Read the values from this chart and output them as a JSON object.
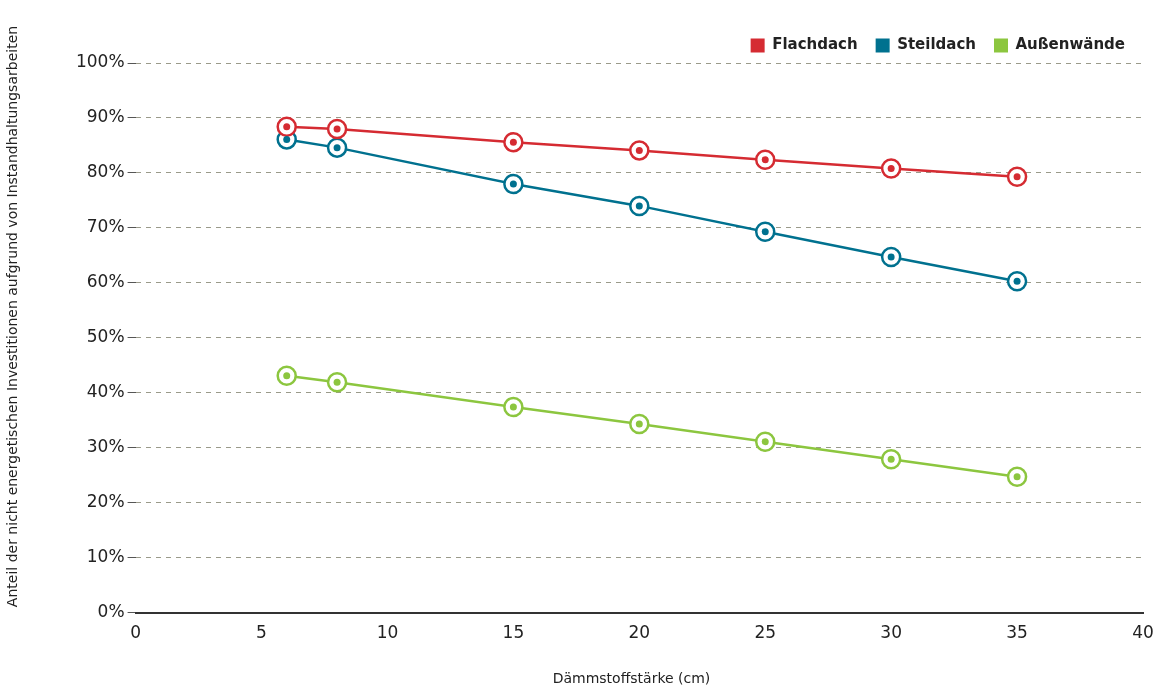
{
  "chart_data": {
    "type": "line",
    "xlabel": "Dämmstoffstärke (cm)",
    "ylabel": "Anteil der nicht energetischen Investitionen aufgrund von Instandhaltungsarbeiten",
    "x": [
      6,
      8,
      15,
      20,
      25,
      30,
      35
    ],
    "series": [
      {
        "name": "Flachdach",
        "color": "#d52b32",
        "values": [
          88.4,
          88.0,
          85.6,
          84.1,
          82.4,
          80.8,
          79.3
        ]
      },
      {
        "name": "Steildach",
        "color": "#00718f",
        "values": [
          86.1,
          84.6,
          78.0,
          74.0,
          69.3,
          64.7,
          60.3
        ]
      },
      {
        "name": "Außenwände",
        "color": "#8cc63f",
        "values": [
          43.1,
          41.9,
          37.4,
          34.3,
          31.1,
          27.9,
          24.7
        ]
      }
    ],
    "xlim": [
      0,
      40
    ],
    "xticks": [
      0,
      5,
      10,
      15,
      20,
      25,
      30,
      35,
      40
    ],
    "ylim": [
      0,
      100
    ],
    "yticks": [
      {
        "value": 0,
        "label": "0%"
      },
      {
        "value": 10,
        "label": "10%"
      },
      {
        "value": 20,
        "label": "20%"
      },
      {
        "value": 30,
        "label": "30%"
      },
      {
        "value": 40,
        "label": "40%"
      },
      {
        "value": 50,
        "label": "50%"
      },
      {
        "value": 60,
        "label": "60%"
      },
      {
        "value": 70,
        "label": "70%"
      },
      {
        "value": 80,
        "label": "80%"
      },
      {
        "value": 90,
        "label": "90%"
      },
      {
        "value": 100,
        "label": "100%"
      }
    ],
    "grid": "y",
    "legend": "top right",
    "marker": "circle",
    "line_style": "solid"
  }
}
